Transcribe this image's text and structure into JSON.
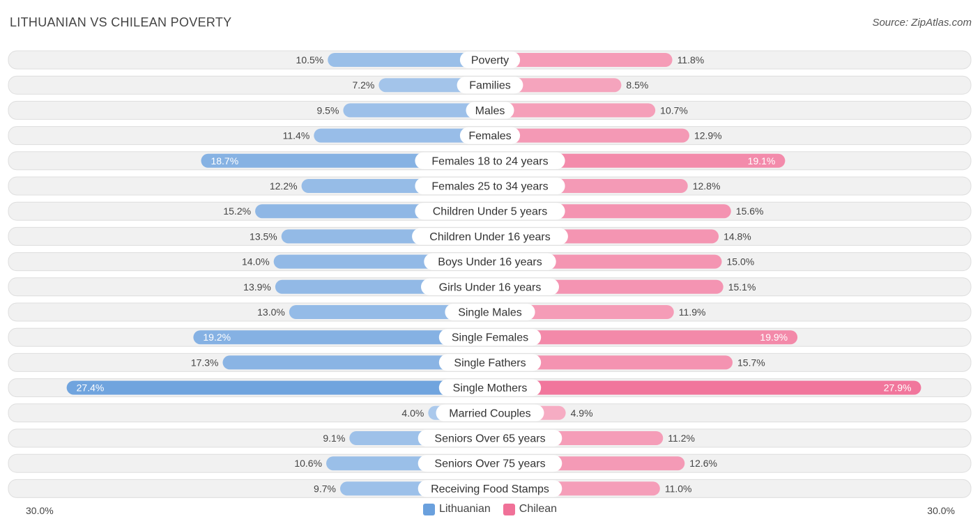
{
  "title": "LITHUANIAN VS CHILEAN POVERTY",
  "source": "Source: ZipAtlas.com",
  "colors": {
    "lithuanian": "#6aa0dd",
    "chilean": "#f07198",
    "lithuanian_light": "#a9c9ee",
    "chilean_light": "#f7a9c2"
  },
  "axis": {
    "left_label": "30.0%",
    "right_label": "30.0%"
  },
  "legend": {
    "lithuanian": "Lithuanian",
    "chilean": "Chilean"
  },
  "chart_data": {
    "type": "bar",
    "orientation": "diverging-horizontal",
    "title": "LITHUANIAN VS CHILEAN POVERTY",
    "xlim": [
      -30,
      30
    ],
    "categories": [
      "Poverty",
      "Families",
      "Males",
      "Females",
      "Females 18 to 24 years",
      "Females 25 to 34 years",
      "Children Under 5 years",
      "Children Under 16 years",
      "Boys Under 16 years",
      "Girls Under 16 years",
      "Single Males",
      "Single Females",
      "Single Fathers",
      "Single Mothers",
      "Married Couples",
      "Seniors Over 65 years",
      "Seniors Over 75 years",
      "Receiving Food Stamps"
    ],
    "series": [
      {
        "name": "Lithuanian",
        "values": [
          10.5,
          7.2,
          9.5,
          11.4,
          18.7,
          12.2,
          15.2,
          13.5,
          14.0,
          13.9,
          13.0,
          19.2,
          17.3,
          27.4,
          4.0,
          9.1,
          10.6,
          9.7
        ],
        "labels": [
          "10.5%",
          "7.2%",
          "9.5%",
          "11.4%",
          "18.7%",
          "12.2%",
          "15.2%",
          "13.5%",
          "14.0%",
          "13.9%",
          "13.0%",
          "19.2%",
          "17.3%",
          "27.4%",
          "4.0%",
          "9.1%",
          "10.6%",
          "9.7%"
        ]
      },
      {
        "name": "Chilean",
        "values": [
          11.8,
          8.5,
          10.7,
          12.9,
          19.1,
          12.8,
          15.6,
          14.8,
          15.0,
          15.1,
          11.9,
          19.9,
          15.7,
          27.9,
          4.9,
          11.2,
          12.6,
          11.0
        ],
        "labels": [
          "11.8%",
          "8.5%",
          "10.7%",
          "12.9%",
          "19.1%",
          "12.8%",
          "15.6%",
          "14.8%",
          "15.0%",
          "15.1%",
          "11.9%",
          "19.9%",
          "15.7%",
          "27.9%",
          "4.9%",
          "11.2%",
          "12.6%",
          "11.0%"
        ]
      }
    ]
  }
}
